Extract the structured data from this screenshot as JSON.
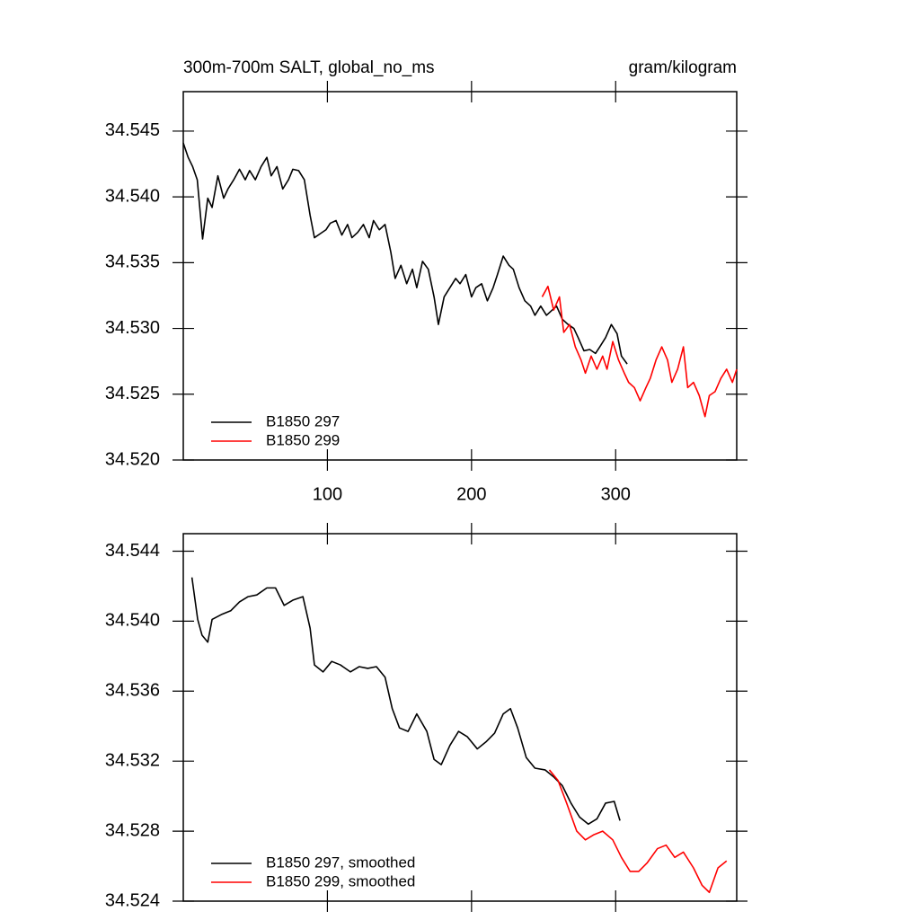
{
  "chart_data": [
    {
      "type": "line",
      "title": "300m-700m SALT, global_no_ms",
      "units": "gram/kilogram",
      "xlim": [
        0,
        384
      ],
      "xticks": [
        100,
        200,
        300
      ],
      "show_xtick_labels": true,
      "ylim": [
        34.52,
        34.548
      ],
      "yticks": [
        {
          "value": 34.52,
          "label": "34.520"
        },
        34.525,
        {
          "value": 34.53,
          "label": "34.530"
        },
        34.535,
        {
          "value": 34.54,
          "label": "34.540"
        },
        34.545
      ],
      "series": [
        {
          "name": "B1850 297",
          "color": "#000000",
          "x": [
            0,
            3.4,
            6.5,
            9.7,
            13.4,
            17,
            20,
            24,
            28,
            31,
            35,
            39,
            43,
            46,
            50,
            54,
            58,
            61,
            65,
            69,
            73,
            76,
            80,
            84,
            88,
            91,
            95,
            99,
            102,
            106,
            110,
            114,
            117,
            121,
            125,
            129,
            132,
            136,
            140,
            144,
            147,
            151,
            155,
            159,
            162,
            166,
            170,
            174,
            177,
            181,
            185,
            189,
            192,
            196,
            200,
            203,
            207,
            211,
            215,
            218,
            222,
            226,
            229,
            233,
            237,
            241,
            244,
            248,
            252,
            256,
            259,
            263,
            267,
            271,
            274,
            278,
            282,
            286,
            289,
            293,
            297,
            301,
            304,
            308
          ],
          "values": [
            34.5441,
            34.543,
            34.5423,
            34.5413,
            34.5368,
            34.5399,
            34.5392,
            34.5416,
            34.5399,
            34.5406,
            34.5413,
            34.5421,
            34.5413,
            34.542,
            34.5413,
            34.5423,
            34.543,
            34.5416,
            34.5423,
            34.5406,
            34.5413,
            34.5421,
            34.542,
            34.5413,
            34.5386,
            34.5369,
            34.5372,
            34.5375,
            34.538,
            34.5382,
            34.5371,
            34.5379,
            34.5369,
            34.5373,
            34.5379,
            34.5369,
            34.5382,
            34.5375,
            34.5379,
            34.5358,
            34.5338,
            34.5348,
            34.5334,
            34.5345,
            34.5331,
            34.5351,
            34.5345,
            34.5324,
            34.5303,
            34.5324,
            34.5331,
            34.5338,
            34.5334,
            34.5341,
            34.5324,
            34.5331,
            34.5334,
            34.5321,
            34.5331,
            34.5341,
            34.5355,
            34.5348,
            34.5345,
            34.5331,
            34.5321,
            34.5317,
            34.531,
            34.5317,
            34.531,
            34.5314,
            34.5317,
            34.5307,
            34.5303,
            34.53,
            34.5293,
            34.5283,
            34.5284,
            34.5281,
            34.5286,
            34.5293,
            34.5303,
            34.5296,
            34.5279,
            34.5273
          ]
        },
        {
          "name": "B1850 299",
          "color": "#ff0000",
          "x": [
            249,
            253,
            257,
            261,
            264,
            268,
            272,
            276,
            279,
            283,
            287,
            291,
            294,
            298,
            302,
            306,
            309,
            313,
            317,
            321,
            324,
            328,
            332,
            336,
            339,
            343,
            347,
            350,
            354,
            358,
            362,
            365,
            369,
            373,
            377,
            381,
            384
          ],
          "values": [
            34.5324,
            34.5332,
            34.5314,
            34.5324,
            34.5297,
            34.5303,
            34.5286,
            34.5276,
            34.5266,
            34.5279,
            34.5269,
            34.5279,
            34.5269,
            34.529,
            34.5276,
            34.5266,
            34.5259,
            34.5255,
            34.5245,
            34.5255,
            34.5262,
            34.5276,
            34.5286,
            34.5276,
            34.5259,
            34.5269,
            34.5286,
            34.5255,
            34.5259,
            34.5249,
            34.5233,
            34.5249,
            34.5252,
            34.5262,
            34.5269,
            34.5259,
            34.5269
          ]
        }
      ]
    },
    {
      "type": "line",
      "xlim": [
        0,
        384
      ],
      "xticks": [
        100,
        200,
        300
      ],
      "show_xtick_labels": false,
      "ylim": [
        34.524,
        34.545
      ],
      "yticks": [
        34.524,
        34.528,
        34.532,
        34.536,
        {
          "value": 34.54,
          "label": "34.540"
        },
        34.544
      ],
      "series": [
        {
          "name": "B1850 297, smoothed",
          "color": "#000000",
          "x": [
            6,
            10,
            13,
            17,
            20,
            27,
            33,
            39,
            45,
            51,
            58,
            64,
            70,
            76,
            83,
            88,
            91,
            97,
            103,
            109,
            116,
            122,
            128,
            134,
            140,
            145,
            150,
            156,
            162,
            169,
            174,
            179,
            185,
            191,
            197,
            204,
            210,
            216,
            222,
            227,
            232,
            238,
            244,
            251,
            257,
            263,
            269,
            275,
            281,
            287,
            293,
            299,
            303
          ],
          "values": [
            34.5425,
            34.5401,
            34.5392,
            34.5388,
            34.5401,
            34.5404,
            34.5406,
            34.5411,
            34.5414,
            34.5415,
            34.5419,
            34.5419,
            34.5409,
            34.5412,
            34.5414,
            34.5396,
            34.5375,
            34.5371,
            34.5377,
            34.5375,
            34.5371,
            34.5374,
            34.5373,
            34.5374,
            34.5368,
            34.535,
            34.5339,
            34.5337,
            34.5347,
            34.5337,
            34.5321,
            34.5318,
            34.5329,
            34.5337,
            34.5334,
            34.5327,
            34.5331,
            34.5336,
            34.5347,
            34.535,
            34.5339,
            34.5322,
            34.5316,
            34.5315,
            34.5311,
            34.5306,
            34.5296,
            34.5288,
            34.5284,
            34.5287,
            34.5296,
            34.5297,
            34.5286
          ]
        },
        {
          "name": "B1850 299, smoothed",
          "color": "#ff0000",
          "x": [
            254,
            260,
            266,
            273,
            279,
            285,
            291,
            298,
            304,
            310,
            316,
            322,
            329,
            335,
            341,
            347,
            354,
            360,
            365,
            371,
            377
          ],
          "values": [
            34.5315,
            34.5309,
            34.5296,
            34.528,
            34.5275,
            34.5278,
            34.528,
            34.5275,
            34.5265,
            34.5257,
            34.5257,
            34.5262,
            34.527,
            34.5272,
            34.5265,
            34.5268,
            34.5259,
            34.5249,
            34.5245,
            34.5259,
            34.5263
          ]
        }
      ]
    }
  ]
}
